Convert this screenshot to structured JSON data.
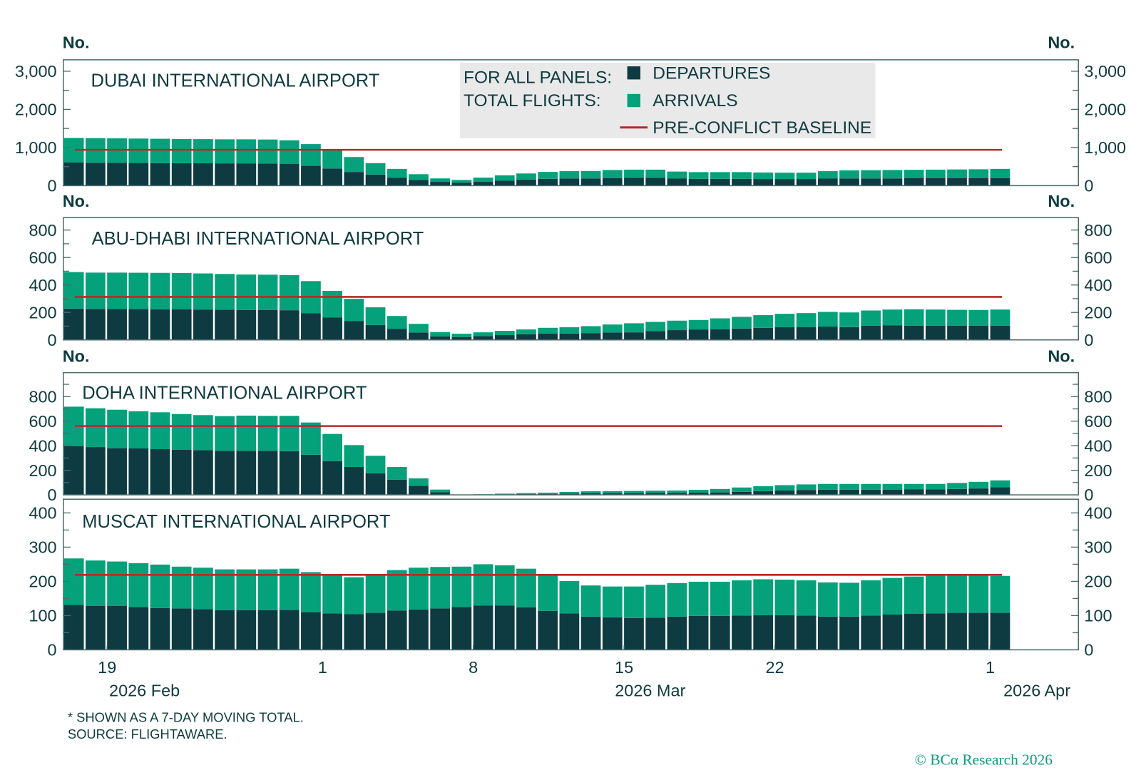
{
  "colors": {
    "departures": "#0e3a41",
    "arrivals": "#05a17a",
    "baseline": "#b8282a",
    "text": "#0f3b40",
    "frame": "#4d6b6b",
    "legend_bg": "#e9e9e9"
  },
  "unit_label": "No.",
  "legend": {
    "header_line1": "FOR ALL PANELS:",
    "header_line2": "TOTAL FLIGHTS:",
    "departures": "DEPARTURES",
    "arrivals": "ARRIVALS",
    "baseline": "PRE-CONFLICT BASELINE"
  },
  "x_axis": {
    "tick_labels": [
      "19",
      "1",
      "8",
      "15",
      "22",
      "1"
    ],
    "tick_dates": [
      "2026-02-19",
      "2026-03-01",
      "2026-03-08",
      "2026-03-15",
      "2026-03-22",
      "2026-04-01"
    ],
    "month_labels": [
      "2026 Feb",
      "2026 Mar",
      "2026 Apr"
    ],
    "range": [
      "2026-02-17",
      "2026-04-04"
    ]
  },
  "footnote": {
    "line1": "* SHOWN AS A 7-DAY MOVING TOTAL.",
    "line2": "SOURCE: FLIGHTAWARE."
  },
  "copyright": "© BCα Research 2026",
  "chart_data": [
    {
      "type": "bar",
      "stacked": true,
      "title": "DUBAI INTERNATIONAL AIRPORT",
      "ylabel": "No.",
      "ylim": [
        0,
        3300
      ],
      "yticks": [
        0,
        1000,
        2000,
        3000
      ],
      "ytick_labels": [
        "0",
        "1,000",
        "2,000",
        "3,000"
      ],
      "x": [
        "2026-02-17",
        "2026-02-18",
        "2026-02-19",
        "2026-02-20",
        "2026-02-21",
        "2026-02-22",
        "2026-02-23",
        "2026-02-24",
        "2026-02-25",
        "2026-02-26",
        "2026-02-27",
        "2026-02-28",
        "2026-03-01",
        "2026-03-02",
        "2026-03-03",
        "2026-03-04",
        "2026-03-05",
        "2026-03-06",
        "2026-03-07",
        "2026-03-08",
        "2026-03-09",
        "2026-03-10",
        "2026-03-11",
        "2026-03-12",
        "2026-03-13",
        "2026-03-14",
        "2026-03-15",
        "2026-03-16",
        "2026-03-17",
        "2026-03-18",
        "2026-03-19",
        "2026-03-20",
        "2026-03-21",
        "2026-03-22",
        "2026-03-23",
        "2026-03-24",
        "2026-03-25",
        "2026-03-26",
        "2026-03-27",
        "2026-03-28",
        "2026-03-29",
        "2026-03-30",
        "2026-03-31",
        "2026-04-01"
      ],
      "series": [
        {
          "name": "DEPARTURES",
          "values": [
            606,
            600,
            598,
            595,
            592,
            590,
            588,
            585,
            585,
            582,
            575,
            520,
            450,
            360,
            290,
            210,
            150,
            100,
            80,
            100,
            130,
            160,
            180,
            190,
            190,
            200,
            205,
            205,
            185,
            180,
            180,
            180,
            175,
            175,
            175,
            185,
            190,
            190,
            190,
            195,
            195,
            195,
            195,
            200
          ]
        },
        {
          "name": "ARRIVALS",
          "values": [
            644,
            645,
            642,
            640,
            638,
            635,
            632,
            630,
            630,
            628,
            615,
            570,
            490,
            390,
            300,
            230,
            150,
            90,
            70,
            110,
            140,
            160,
            180,
            190,
            195,
            210,
            215,
            215,
            185,
            175,
            175,
            175,
            170,
            165,
            165,
            195,
            210,
            215,
            220,
            220,
            225,
            230,
            235,
            240
          ]
        }
      ],
      "baseline": {
        "name": "PRE-CONFLICT BASELINE",
        "value": 940
      }
    },
    {
      "type": "bar",
      "stacked": true,
      "title": "ABU-DHABI INTERNATIONAL AIRPORT",
      "ylabel": "No.",
      "ylim": [
        0,
        890
      ],
      "yticks": [
        0,
        200,
        400,
        600,
        800
      ],
      "ytick_labels": [
        "0",
        "200",
        "400",
        "600",
        "800"
      ],
      "x": [
        "2026-02-17",
        "2026-02-18",
        "2026-02-19",
        "2026-02-20",
        "2026-02-21",
        "2026-02-22",
        "2026-02-23",
        "2026-02-24",
        "2026-02-25",
        "2026-02-26",
        "2026-02-27",
        "2026-02-28",
        "2026-03-01",
        "2026-03-02",
        "2026-03-03",
        "2026-03-04",
        "2026-03-05",
        "2026-03-06",
        "2026-03-07",
        "2026-03-08",
        "2026-03-09",
        "2026-03-10",
        "2026-03-11",
        "2026-03-12",
        "2026-03-13",
        "2026-03-14",
        "2026-03-15",
        "2026-03-16",
        "2026-03-17",
        "2026-03-18",
        "2026-03-19",
        "2026-03-20",
        "2026-03-21",
        "2026-03-22",
        "2026-03-23",
        "2026-03-24",
        "2026-03-25",
        "2026-03-26",
        "2026-03-27",
        "2026-03-28",
        "2026-03-29",
        "2026-03-30",
        "2026-03-31",
        "2026-04-01"
      ],
      "series": [
        {
          "name": "DEPARTURES",
          "values": [
            228,
            225,
            225,
            224,
            223,
            222,
            221,
            219,
            218,
            217,
            216,
            195,
            164,
            138,
            109,
            81,
            54,
            26,
            21,
            28,
            35,
            41,
            45,
            46,
            48,
            54,
            55,
            64,
            71,
            76,
            78,
            83,
            88,
            92,
            94,
            97,
            93,
            104,
            105,
            104,
            104,
            104,
            104,
            104
          ]
        },
        {
          "name": "ARRIVALS",
          "values": [
            266,
            265,
            265,
            265,
            265,
            265,
            263,
            261,
            258,
            258,
            256,
            233,
            193,
            161,
            128,
            93,
            63,
            31,
            24,
            27,
            31,
            35,
            43,
            46,
            52,
            58,
            66,
            67,
            69,
            69,
            79,
            85,
            92,
            98,
            101,
            107,
            107,
            110,
            116,
            119,
            117,
            115,
            114,
            117
          ]
        }
      ],
      "baseline": {
        "name": "PRE-CONFLICT BASELINE",
        "value": 313
      }
    },
    {
      "type": "bar",
      "stacked": true,
      "title": "DOHA INTERNATIONAL AIRPORT",
      "ylabel": "No.",
      "ylim": [
        0,
        995
      ],
      "yticks": [
        0,
        200,
        400,
        600,
        800
      ],
      "ytick_labels": [
        "0",
        "200",
        "400",
        "600",
        "800"
      ],
      "x": [
        "2026-02-17",
        "2026-02-18",
        "2026-02-19",
        "2026-02-20",
        "2026-02-21",
        "2026-02-22",
        "2026-02-23",
        "2026-02-24",
        "2026-02-25",
        "2026-02-26",
        "2026-02-27",
        "2026-02-28",
        "2026-03-01",
        "2026-03-02",
        "2026-03-03",
        "2026-03-04",
        "2026-03-05",
        "2026-03-06",
        "2026-03-07",
        "2026-03-08",
        "2026-03-09",
        "2026-03-10",
        "2026-03-11",
        "2026-03-12",
        "2026-03-13",
        "2026-03-14",
        "2026-03-15",
        "2026-03-16",
        "2026-03-17",
        "2026-03-18",
        "2026-03-19",
        "2026-03-20",
        "2026-03-21",
        "2026-03-22",
        "2026-03-23",
        "2026-03-24",
        "2026-03-25",
        "2026-03-26",
        "2026-03-27",
        "2026-03-28",
        "2026-03-29",
        "2026-03-30",
        "2026-03-31",
        "2026-04-01"
      ],
      "series": [
        {
          "name": "DEPARTURES",
          "values": [
            397,
            389,
            380,
            378,
            372,
            366,
            364,
            358,
            358,
            358,
            356,
            327,
            275,
            227,
            176,
            124,
            74,
            22,
            1,
            2,
            4,
            6,
            8,
            10,
            12,
            13,
            14,
            15,
            16,
            18,
            20,
            25,
            30,
            36,
            40,
            42,
            42,
            42,
            43,
            44,
            45,
            48,
            52,
            62
          ]
        },
        {
          "name": "ARRIVALS",
          "values": [
            321,
            316,
            313,
            303,
            300,
            292,
            285,
            283,
            287,
            285,
            287,
            262,
            221,
            178,
            142,
            103,
            60,
            21,
            2,
            3,
            6,
            8,
            10,
            14,
            17,
            17,
            18,
            19,
            19,
            23,
            28,
            35,
            40,
            43,
            45,
            47,
            47,
            47,
            46,
            45,
            44,
            49,
            54,
            56
          ]
        }
      ],
      "baseline": {
        "name": "PRE-CONFLICT BASELINE",
        "value": 560
      }
    },
    {
      "type": "bar",
      "stacked": true,
      "title": "MUSCAT INTERNATIONAL AIRPORT",
      "ylabel": "No.",
      "ylim": [
        0,
        440
      ],
      "yticks": [
        0,
        100,
        200,
        300,
        400
      ],
      "ytick_labels": [
        "0",
        "100",
        "200",
        "300",
        "400"
      ],
      "x": [
        "2026-02-17",
        "2026-02-18",
        "2026-02-19",
        "2026-02-20",
        "2026-02-21",
        "2026-02-22",
        "2026-02-23",
        "2026-02-24",
        "2026-02-25",
        "2026-02-26",
        "2026-02-27",
        "2026-02-28",
        "2026-03-01",
        "2026-03-02",
        "2026-03-03",
        "2026-03-04",
        "2026-03-05",
        "2026-03-06",
        "2026-03-07",
        "2026-03-08",
        "2026-03-09",
        "2026-03-10",
        "2026-03-11",
        "2026-03-12",
        "2026-03-13",
        "2026-03-14",
        "2026-03-15",
        "2026-03-16",
        "2026-03-17",
        "2026-03-18",
        "2026-03-19",
        "2026-03-20",
        "2026-03-21",
        "2026-03-22",
        "2026-03-23",
        "2026-03-24",
        "2026-03-25",
        "2026-03-26",
        "2026-03-27",
        "2026-03-28",
        "2026-03-29",
        "2026-03-30",
        "2026-03-31",
        "2026-04-01"
      ],
      "series": [
        {
          "name": "DEPARTURES",
          "values": [
            131,
            128,
            128,
            125,
            122,
            121,
            119,
            116,
            116,
            116,
            117,
            110,
            106,
            104,
            108,
            115,
            118,
            121,
            125,
            129,
            129,
            124,
            114,
            106,
            97,
            95,
            93,
            94,
            97,
            99,
            99,
            100,
            101,
            101,
            100,
            97,
            97,
            100,
            103,
            105,
            106,
            108,
            108,
            108
          ]
        },
        {
          "name": "ARRIVALS",
          "values": [
            136,
            133,
            130,
            128,
            127,
            122,
            121,
            119,
            119,
            119,
            120,
            117,
            114,
            108,
            112,
            118,
            122,
            121,
            118,
            121,
            118,
            113,
            106,
            95,
            91,
            90,
            92,
            96,
            98,
            100,
            100,
            103,
            105,
            104,
            103,
            100,
            99,
            103,
            107,
            109,
            111,
            109,
            109,
            108
          ]
        }
      ],
      "baseline": {
        "name": "PRE-CONFLICT BASELINE",
        "value": 219
      }
    }
  ]
}
